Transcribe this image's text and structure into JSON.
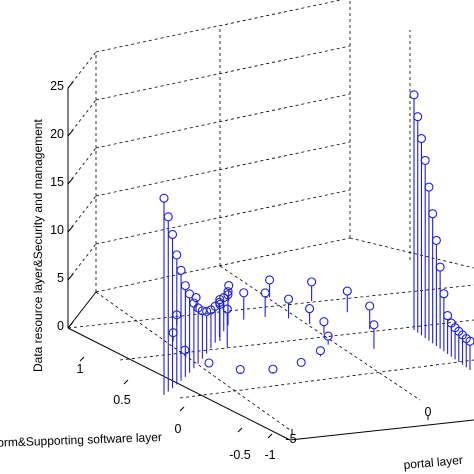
{
  "chart_data": {
    "type": "stem3",
    "zlabel": "Data resource layer&Security and management",
    "ylabel": "Platform&Supporting software layer",
    "xlabel": "portal layer",
    "zticks": [
      "0",
      "5",
      "10",
      "15",
      "20",
      "25"
    ],
    "yticks": [
      "1",
      "0.5",
      "0",
      "-0.5",
      "-1"
    ],
    "xticks": [
      "-5",
      "0"
    ],
    "zlim": [
      0,
      25
    ],
    "grid": true,
    "box": true,
    "stem_color": "#1f1fdc",
    "series_front": [
      20.5,
      18.2,
      16.0,
      13.5,
      11.5,
      9.5,
      8.2,
      6.8,
      5.8,
      5.0,
      4.4,
      4.0,
      3.8,
      3.6,
      3.5,
      3.5
    ],
    "series_spiral": [
      4.0,
      3.8,
      3.5,
      3.2,
      2.8,
      2.5,
      2.0,
      1.6,
      1.2,
      0.9,
      0.6,
      0.4,
      0.3,
      0.3,
      0.4,
      0.6,
      0.9,
      1.1,
      1.4,
      1.6,
      1.8,
      2.0,
      2.2,
      2.4,
      2.5
    ],
    "series_back": [
      24.5,
      22.5,
      20.5,
      18.5,
      16.0,
      13.5,
      11.0,
      8.5,
      6.0,
      4.0,
      3.5,
      3.3,
      3.2,
      3.1,
      3.0,
      3.0
    ]
  }
}
